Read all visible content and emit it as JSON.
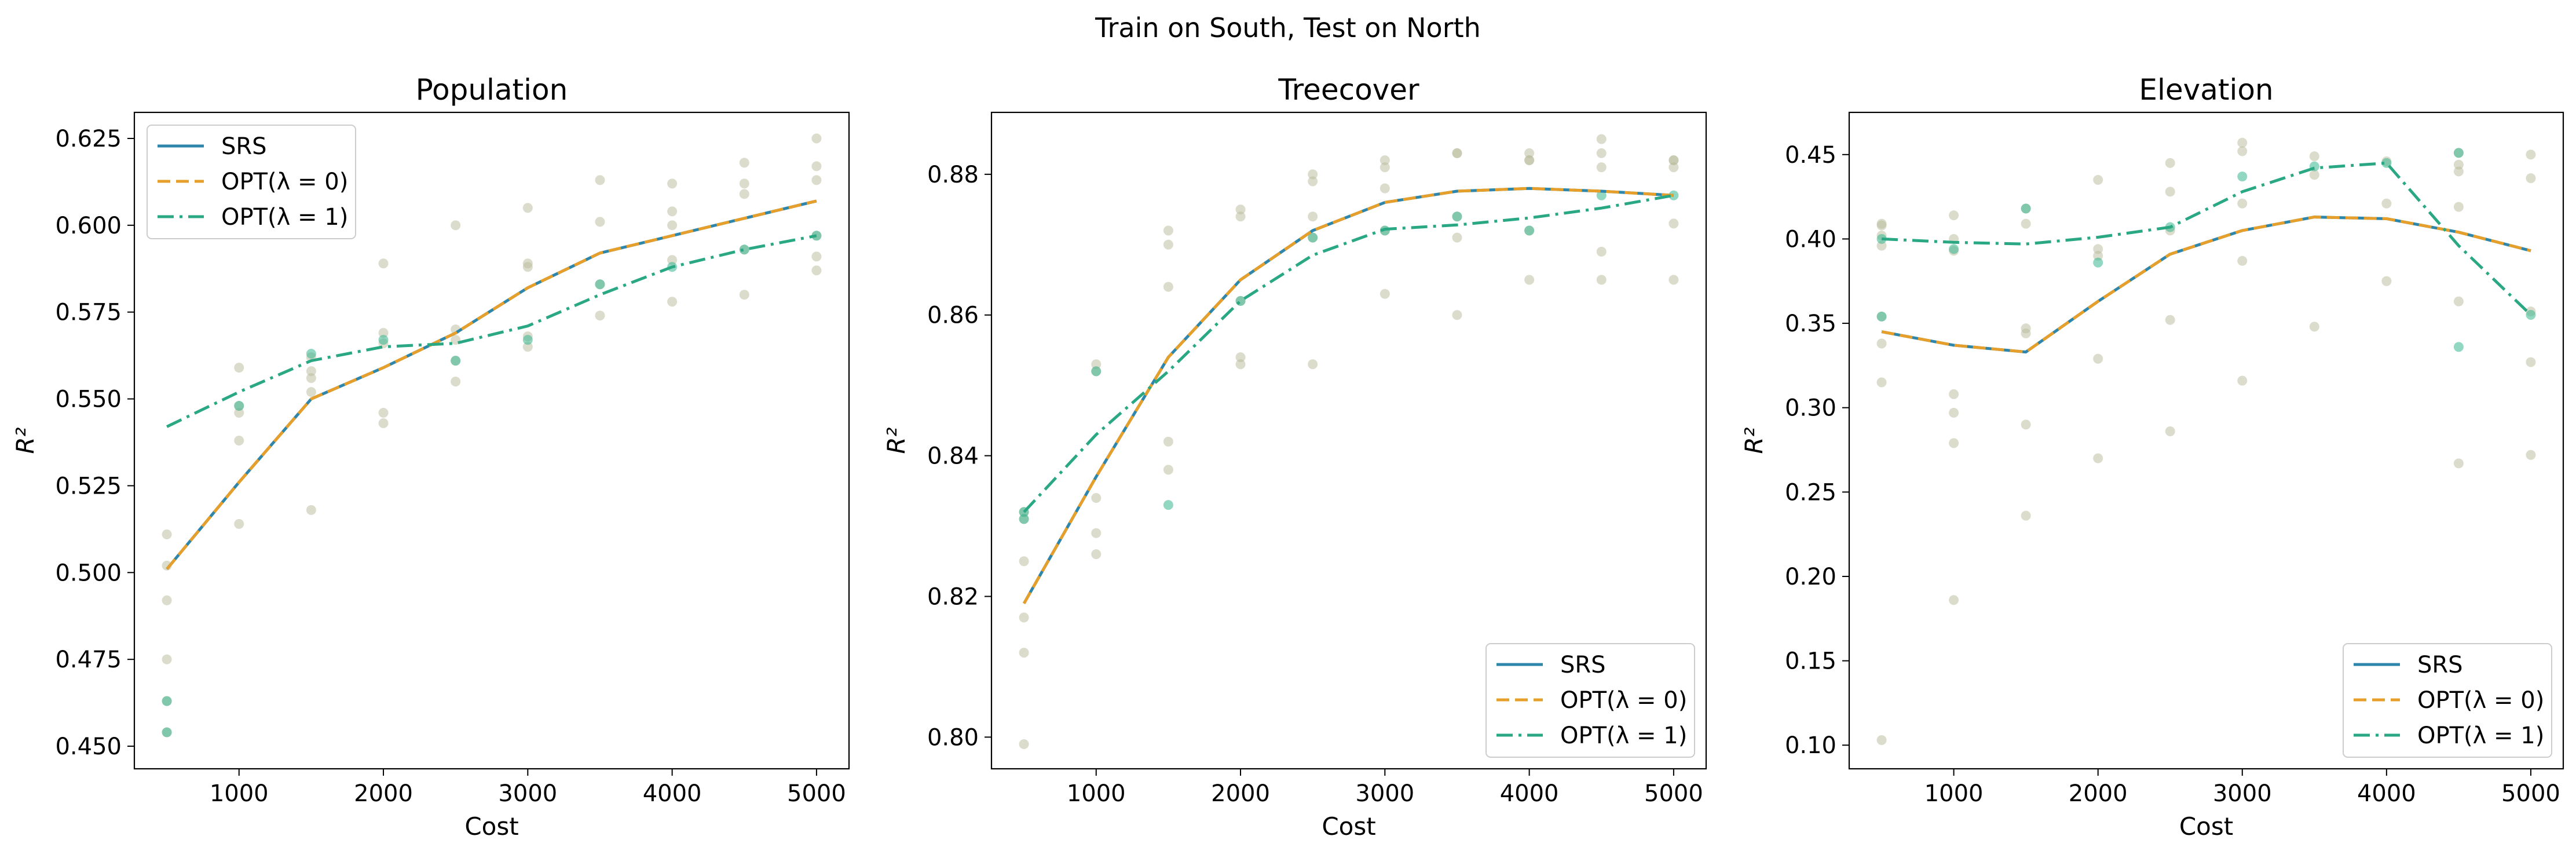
{
  "figure": {
    "suptitle": "Train on South, Test on North"
  },
  "colors": {
    "srs": "#2e86ab",
    "opt0": "#e69f2a",
    "opt1": "#2aa884",
    "trial_point": "#b7b99a",
    "trial_point_opt1": "#36b690"
  },
  "chart_data": [
    {
      "type": "line",
      "title": "Population",
      "xlabel": "Cost",
      "ylabel": "R²",
      "x": [
        500,
        1000,
        1500,
        2000,
        2500,
        3000,
        3500,
        4000,
        4500,
        5000
      ],
      "xlim": [
        275,
        5225
      ],
      "ylim": [
        0.4435,
        0.6325
      ],
      "xticks": [
        1000,
        2000,
        3000,
        4000,
        5000
      ],
      "yticks": [
        0.45,
        0.475,
        0.5,
        0.525,
        0.55,
        0.575,
        0.6,
        0.625
      ],
      "ytick_labels": [
        "0.450",
        "0.475",
        "0.500",
        "0.525",
        "0.550",
        "0.575",
        "0.600",
        "0.625"
      ],
      "legend_loc": "upper-left",
      "grid": false,
      "series": [
        {
          "name": "SRS",
          "style": "solid",
          "color_key": "srs",
          "values": [
            0.501,
            0.526,
            0.55,
            0.559,
            0.569,
            0.582,
            0.592,
            0.597,
            0.602,
            0.607
          ]
        },
        {
          "name": "OPT(λ = 0)",
          "style": "dashed",
          "color_key": "opt0",
          "values": [
            0.501,
            0.526,
            0.55,
            0.559,
            0.569,
            0.582,
            0.592,
            0.597,
            0.602,
            0.607
          ]
        },
        {
          "name": "OPT(λ = 1)",
          "style": "dashdot",
          "color_key": "opt1",
          "values": [
            0.542,
            0.552,
            0.561,
            0.565,
            0.566,
            0.571,
            0.58,
            0.588,
            0.593,
            0.597
          ]
        }
      ],
      "trials": [
        {
          "x": 500,
          "y": [
            0.511,
            0.502,
            0.492,
            0.475,
            0.463,
            0.454
          ]
        },
        {
          "x": 1000,
          "y": [
            0.559,
            0.548,
            0.546,
            0.538,
            0.514
          ]
        },
        {
          "x": 1500,
          "y": [
            0.562,
            0.558,
            0.556,
            0.552,
            0.518
          ]
        },
        {
          "x": 2000,
          "y": [
            0.589,
            0.569,
            0.566,
            0.546,
            0.543
          ]
        },
        {
          "x": 2500,
          "y": [
            0.6,
            0.57,
            0.567,
            0.561,
            0.555
          ]
        },
        {
          "x": 3000,
          "y": [
            0.605,
            0.589,
            0.588,
            0.568,
            0.565
          ]
        },
        {
          "x": 3500,
          "y": [
            0.613,
            0.601,
            0.583,
            0.574
          ]
        },
        {
          "x": 4000,
          "y": [
            0.612,
            0.604,
            0.6,
            0.59,
            0.578
          ]
        },
        {
          "x": 4500,
          "y": [
            0.618,
            0.612,
            0.609,
            0.593,
            0.58
          ]
        },
        {
          "x": 5000,
          "y": [
            0.625,
            0.617,
            0.613,
            0.597,
            0.591,
            0.587
          ]
        }
      ],
      "trials_opt1": [
        {
          "x": 500,
          "y": [
            0.463,
            0.454
          ]
        },
        {
          "x": 1000,
          "y": [
            0.548
          ]
        },
        {
          "x": 1500,
          "y": [
            0.563
          ]
        },
        {
          "x": 2000,
          "y": [
            0.567
          ]
        },
        {
          "x": 2500,
          "y": [
            0.561
          ]
        },
        {
          "x": 3000,
          "y": [
            0.567
          ]
        },
        {
          "x": 3500,
          "y": [
            0.583
          ]
        },
        {
          "x": 4000,
          "y": [
            0.588
          ]
        },
        {
          "x": 4500,
          "y": [
            0.593
          ]
        },
        {
          "x": 5000,
          "y": [
            0.597
          ]
        }
      ]
    },
    {
      "type": "line",
      "title": "Treecover",
      "xlabel": "Cost",
      "ylabel": "R²",
      "x": [
        500,
        1000,
        1500,
        2000,
        2500,
        3000,
        3500,
        4000,
        4500,
        5000
      ],
      "xlim": [
        275,
        5225
      ],
      "ylim": [
        0.7955,
        0.8888
      ],
      "xticks": [
        1000,
        2000,
        3000,
        4000,
        5000
      ],
      "yticks": [
        0.8,
        0.82,
        0.84,
        0.86,
        0.88
      ],
      "ytick_labels": [
        "0.80",
        "0.82",
        "0.84",
        "0.86",
        "0.88"
      ],
      "legend_loc": "lower-right",
      "grid": false,
      "series": [
        {
          "name": "SRS",
          "style": "solid",
          "color_key": "srs",
          "values": [
            0.819,
            0.837,
            0.854,
            0.865,
            0.872,
            0.876,
            0.8776,
            0.878,
            0.8776,
            0.877
          ]
        },
        {
          "name": "OPT(λ = 0)",
          "style": "dashed",
          "color_key": "opt0",
          "values": [
            0.819,
            0.837,
            0.854,
            0.865,
            0.872,
            0.876,
            0.8776,
            0.878,
            0.8776,
            0.877
          ]
        },
        {
          "name": "OPT(λ = 1)",
          "style": "dashdot",
          "color_key": "opt1",
          "values": [
            0.832,
            0.843,
            0.852,
            0.862,
            0.8685,
            0.8722,
            0.8728,
            0.8738,
            0.8752,
            0.877
          ]
        }
      ],
      "trials": [
        {
          "x": 500,
          "y": [
            0.832,
            0.831,
            0.825,
            0.817,
            0.812,
            0.799
          ]
        },
        {
          "x": 1000,
          "y": [
            0.853,
            0.852,
            0.834,
            0.829,
            0.826
          ]
        },
        {
          "x": 1500,
          "y": [
            0.872,
            0.87,
            0.864,
            0.842,
            0.838
          ]
        },
        {
          "x": 2000,
          "y": [
            0.875,
            0.874,
            0.862,
            0.854,
            0.853
          ]
        },
        {
          "x": 2500,
          "y": [
            0.88,
            0.879,
            0.874,
            0.871,
            0.853
          ]
        },
        {
          "x": 3000,
          "y": [
            0.882,
            0.881,
            0.878,
            0.872,
            0.863
          ]
        },
        {
          "x": 3500,
          "y": [
            0.883,
            0.883,
            0.874,
            0.871,
            0.86
          ]
        },
        {
          "x": 4000,
          "y": [
            0.883,
            0.882,
            0.882,
            0.872,
            0.865
          ]
        },
        {
          "x": 4500,
          "y": [
            0.885,
            0.883,
            0.881,
            0.869,
            0.865
          ]
        },
        {
          "x": 5000,
          "y": [
            0.882,
            0.882,
            0.881,
            0.873,
            0.865
          ]
        }
      ],
      "trials_opt1": [
        {
          "x": 500,
          "y": [
            0.832,
            0.831
          ]
        },
        {
          "x": 1000,
          "y": [
            0.852
          ]
        },
        {
          "x": 1500,
          "y": [
            0.833
          ]
        },
        {
          "x": 2000,
          "y": [
            0.862
          ]
        },
        {
          "x": 2500,
          "y": [
            0.871
          ]
        },
        {
          "x": 3000,
          "y": [
            0.872
          ]
        },
        {
          "x": 3500,
          "y": [
            0.874
          ]
        },
        {
          "x": 4000,
          "y": [
            0.872
          ]
        },
        {
          "x": 4500,
          "y": [
            0.877
          ]
        },
        {
          "x": 5000,
          "y": [
            0.877
          ]
        }
      ]
    },
    {
      "type": "line",
      "title": "Elevation",
      "xlabel": "Cost",
      "ylabel": "R²",
      "x": [
        500,
        1000,
        1500,
        2000,
        2500,
        3000,
        3500,
        4000,
        4500,
        5000
      ],
      "xlim": [
        275,
        5225
      ],
      "ylim": [
        0.086,
        0.475
      ],
      "xticks": [
        1000,
        2000,
        3000,
        4000,
        5000
      ],
      "yticks": [
        0.1,
        0.15,
        0.2,
        0.25,
        0.3,
        0.35,
        0.4,
        0.45
      ],
      "ytick_labels": [
        "0.10",
        "0.15",
        "0.20",
        "0.25",
        "0.30",
        "0.35",
        "0.40",
        "0.45"
      ],
      "legend_loc": "lower-right",
      "grid": false,
      "series": [
        {
          "name": "SRS",
          "style": "solid",
          "color_key": "srs",
          "values": [
            0.345,
            0.337,
            0.333,
            0.363,
            0.391,
            0.405,
            0.413,
            0.412,
            0.404,
            0.393
          ]
        },
        {
          "name": "OPT(λ = 0)",
          "style": "dashed",
          "color_key": "opt0",
          "values": [
            0.345,
            0.337,
            0.333,
            0.363,
            0.391,
            0.405,
            0.413,
            0.412,
            0.404,
            0.393
          ]
        },
        {
          "name": "OPT(λ = 1)",
          "style": "dashdot",
          "color_key": "opt1",
          "values": [
            0.4,
            0.398,
            0.397,
            0.401,
            0.407,
            0.428,
            0.442,
            0.445,
            0.396,
            0.355
          ]
        }
      ],
      "trials": [
        {
          "x": 500,
          "y": [
            0.409,
            0.408,
            0.402,
            0.396,
            0.354,
            0.338,
            0.315,
            0.103
          ]
        },
        {
          "x": 1000,
          "y": [
            0.414,
            0.4,
            0.393,
            0.308,
            0.297,
            0.279,
            0.186
          ]
        },
        {
          "x": 1500,
          "y": [
            0.418,
            0.409,
            0.347,
            0.344,
            0.29,
            0.236
          ]
        },
        {
          "x": 2000,
          "y": [
            0.435,
            0.394,
            0.39,
            0.329,
            0.27
          ]
        },
        {
          "x": 2500,
          "y": [
            0.445,
            0.428,
            0.405,
            0.352,
            0.286
          ]
        },
        {
          "x": 3000,
          "y": [
            0.457,
            0.452,
            0.421,
            0.387,
            0.316
          ]
        },
        {
          "x": 3500,
          "y": [
            0.449,
            0.438,
            0.348
          ]
        },
        {
          "x": 4000,
          "y": [
            0.446,
            0.421,
            0.375
          ]
        },
        {
          "x": 4500,
          "y": [
            0.451,
            0.444,
            0.44,
            0.419,
            0.363,
            0.267
          ]
        },
        {
          "x": 5000,
          "y": [
            0.45,
            0.436,
            0.357,
            0.327,
            0.272
          ]
        }
      ],
      "trials_opt1": [
        {
          "x": 500,
          "y": [
            0.4,
            0.354
          ]
        },
        {
          "x": 1000,
          "y": [
            0.394
          ]
        },
        {
          "x": 1500,
          "y": [
            0.418
          ]
        },
        {
          "x": 2000,
          "y": [
            0.386
          ]
        },
        {
          "x": 2500,
          "y": [
            0.407
          ]
        },
        {
          "x": 3000,
          "y": [
            0.437
          ]
        },
        {
          "x": 3500,
          "y": [
            0.443
          ]
        },
        {
          "x": 4000,
          "y": [
            0.445
          ]
        },
        {
          "x": 4500,
          "y": [
            0.451,
            0.336
          ]
        },
        {
          "x": 5000,
          "y": [
            0.355
          ]
        }
      ]
    }
  ]
}
